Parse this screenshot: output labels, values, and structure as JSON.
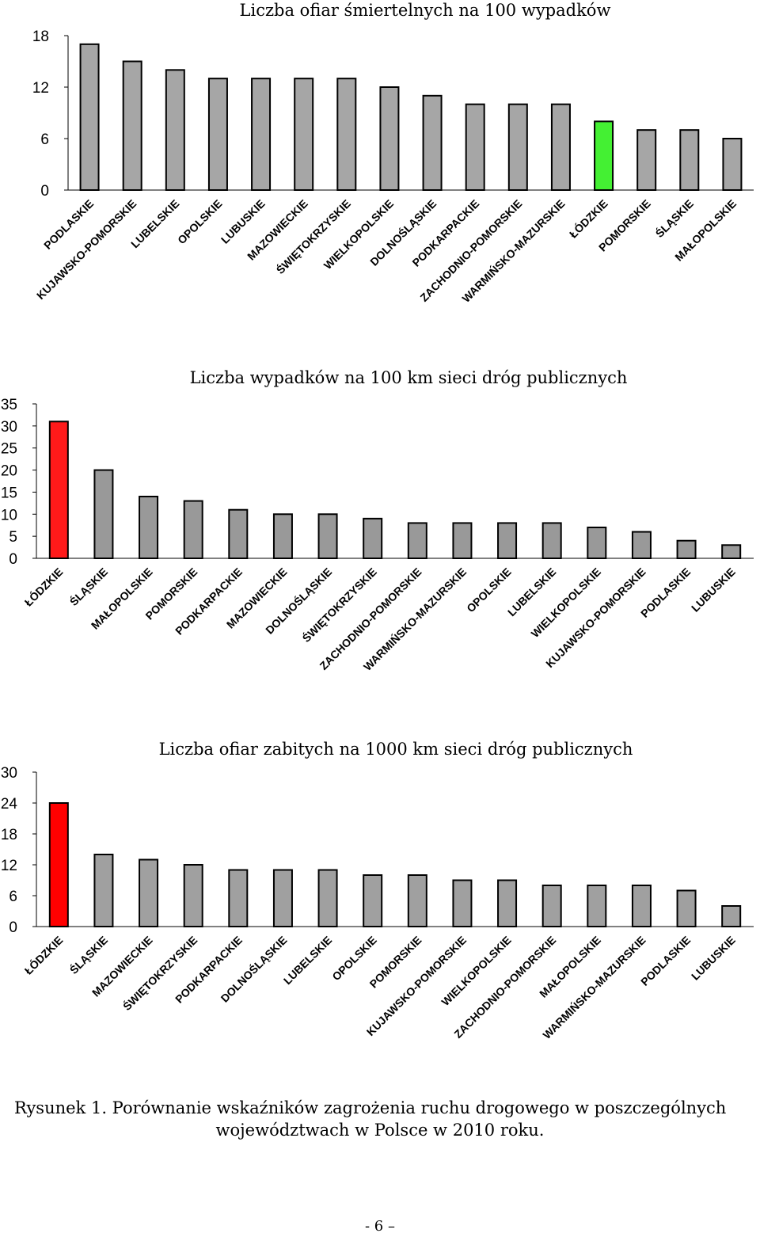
{
  "chart_data": [
    {
      "type": "bar",
      "title": "Liczba ofiar śmiertelnych na 100 wypadków",
      "categories": [
        "PODLASKIE",
        "KUJAWSKO-POMORSKIE",
        "LUBELSKIE",
        "OPOLSKIE",
        "LUBUSKIE",
        "MAZOWIECKIE",
        "ŚWIĘTOKRZYSKIE",
        "WIELKOPOLSKIE",
        "DOLNOŚLĄSKIE",
        "PODKARPACKIE",
        "ZACHODNIO-POMORSKIE",
        "WARMIŃSKO-MAZURSKIE",
        "ŁÓDZKIE",
        "POMORSKIE",
        "ŚLĄSKIE",
        "MAŁOPOLSKIE"
      ],
      "values": [
        17,
        15,
        14,
        13,
        13,
        13,
        13,
        12,
        11,
        10,
        10,
        10,
        8,
        7,
        7,
        6
      ],
      "colors": [
        "#a6a6a6",
        "#a6a6a6",
        "#a6a6a6",
        "#a6a6a6",
        "#a6a6a6",
        "#a6a6a6",
        "#a6a6a6",
        "#a6a6a6",
        "#a6a6a6",
        "#a6a6a6",
        "#a6a6a6",
        "#a6a6a6",
        "#44f033",
        "#a6a6a6",
        "#a6a6a6",
        "#a6a6a6"
      ],
      "yticks": [
        "0",
        "6",
        "12",
        "18"
      ],
      "ylim": [
        0,
        18
      ],
      "xlabel": "",
      "ylabel": "",
      "grid": false
    },
    {
      "type": "bar",
      "title": "Liczba wypadków na 100 km sieci dróg publicznych",
      "categories": [
        "ŁÓDZKIE",
        "ŚLĄSKIE",
        "MAŁOPOLSKIE",
        "POMORSKIE",
        "PODKARPACKIE",
        "MAZOWIECKIE",
        "DOLNOŚLĄSKIE",
        "ŚWIĘTOKRZYSKIE",
        "ZACHODNIO-POMORSKIE",
        "WARMIŃSKO-MAZURSKIE",
        "OPOLSKIE",
        "LUBELSKIE",
        "WIELKOPOLSKIE",
        "KUJAWSKO-POMORSKIE",
        "PODLASKIE",
        "LUBUSKIE"
      ],
      "values": [
        31,
        20,
        14,
        13,
        11,
        10,
        10,
        9,
        8,
        8,
        8,
        8,
        7,
        6,
        4,
        3
      ],
      "colors": [
        "#ff1a1a",
        "#999999",
        "#999999",
        "#999999",
        "#999999",
        "#999999",
        "#999999",
        "#999999",
        "#999999",
        "#999999",
        "#999999",
        "#999999",
        "#999999",
        "#999999",
        "#999999",
        "#999999"
      ],
      "yticks": [
        "0",
        "5",
        "10",
        "15",
        "20",
        "25",
        "30",
        "35"
      ],
      "ylim": [
        0,
        35
      ],
      "xlabel": "",
      "ylabel": "",
      "grid": false
    },
    {
      "type": "bar",
      "title": "Liczba ofiar zabitych na 1000 km sieci dróg publicznych",
      "categories": [
        "ŁÓDZKIE",
        "ŚLĄSKIE",
        "MAZOWIECKIE",
        "ŚWIĘTOKRZYSKIE",
        "PODKARPACKIE",
        "DOLNOŚLĄSKIE",
        "LUBELSKIE",
        "OPOLSKIE",
        "POMORSKIE",
        "KUJAWSKO-POMORSKIE",
        "WIELKOPOLSKIE",
        "ZACHODNIO-POMORSKIE",
        "MAŁOPOLSKIE",
        "WARMIŃSKO-MAZURSKIE",
        "PODLASKIE",
        "LUBUSKIE"
      ],
      "values": [
        24,
        14,
        13,
        12,
        11,
        11,
        11,
        10,
        10,
        9,
        9,
        8,
        8,
        8,
        7,
        4
      ],
      "colors": [
        "#ff0000",
        "#a0a0a0",
        "#a0a0a0",
        "#a0a0a0",
        "#a0a0a0",
        "#a0a0a0",
        "#a0a0a0",
        "#a0a0a0",
        "#a0a0a0",
        "#a0a0a0",
        "#a0a0a0",
        "#a0a0a0",
        "#a0a0a0",
        "#a0a0a0",
        "#a0a0a0",
        "#a0a0a0"
      ],
      "yticks": [
        "0",
        "6",
        "12",
        "18",
        "24",
        "30"
      ],
      "ylim": [
        0,
        30
      ],
      "xlabel": "",
      "ylabel": "",
      "grid": false
    }
  ],
  "caption": {
    "line1": "Rysunek 1. Porównanie wskaźników zagrożenia ruchu drogowego w poszczególnych",
    "line2": "województwach w Polsce w 2010 roku."
  },
  "page_number": "- 6 –"
}
